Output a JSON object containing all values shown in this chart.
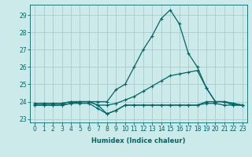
{
  "xlabel": "Humidex (Indice chaleur)",
  "background_color": "#cceaea",
  "grid_color": "#aacccc",
  "line_color": "#006666",
  "xlim": [
    -0.5,
    23.5
  ],
  "ylim": [
    22.8,
    29.6
  ],
  "xticks": [
    0,
    1,
    2,
    3,
    4,
    5,
    6,
    7,
    8,
    9,
    10,
    11,
    12,
    13,
    14,
    15,
    16,
    17,
    18,
    19,
    20,
    21,
    22,
    23
  ],
  "yticks": [
    23,
    24,
    25,
    26,
    27,
    28,
    29
  ],
  "series": [
    [
      23.9,
      23.9,
      23.9,
      23.9,
      24.0,
      24.0,
      24.0,
      24.0,
      24.0,
      24.7,
      25.0,
      26.0,
      27.0,
      27.8,
      28.8,
      29.3,
      28.5,
      26.8,
      26.0,
      24.8,
      24.0,
      24.0,
      23.9,
      23.8
    ],
    [
      23.9,
      23.9,
      23.9,
      23.9,
      24.0,
      24.0,
      24.0,
      23.8,
      23.8,
      23.9,
      24.1,
      24.3,
      24.6,
      24.9,
      25.2,
      25.5,
      25.6,
      25.7,
      25.8,
      24.8,
      24.0,
      24.0,
      23.9,
      23.8
    ],
    [
      23.8,
      23.8,
      23.8,
      23.8,
      23.9,
      24.0,
      24.0,
      23.8,
      23.3,
      23.5,
      23.8,
      23.8,
      23.8,
      23.8,
      23.8,
      23.8,
      23.8,
      23.8,
      23.8,
      24.0,
      24.0,
      24.0,
      23.8,
      23.8
    ],
    [
      23.8,
      23.8,
      23.8,
      23.8,
      23.9,
      23.9,
      23.9,
      23.6,
      23.3,
      23.5,
      23.8,
      23.8,
      23.8,
      23.8,
      23.8,
      23.8,
      23.8,
      23.8,
      23.8,
      23.9,
      23.9,
      23.8,
      23.8,
      23.8
    ]
  ],
  "marker": "+",
  "markersize": 3,
  "linewidth": 0.9,
  "xlabel_fontsize": 6,
  "tick_fontsize": 5.5
}
